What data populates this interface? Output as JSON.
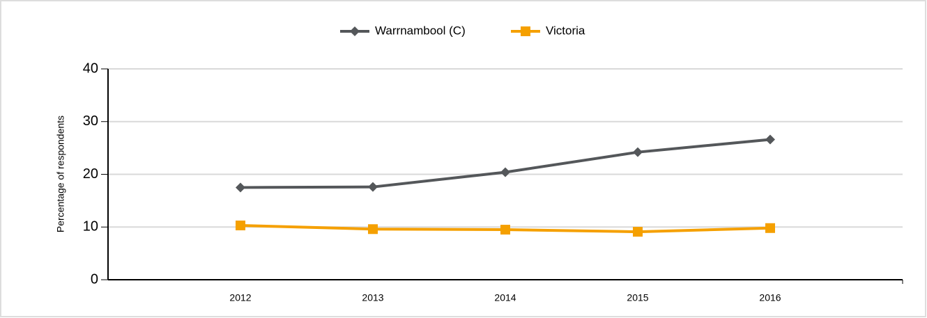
{
  "chart_data": {
    "type": "line",
    "y_label": "Percentage of respondents",
    "categories": [
      "2012",
      "2013",
      "2014",
      "2015",
      "2016"
    ],
    "series": [
      {
        "name": "Warrnambool (C)",
        "color": "#54575a",
        "marker": "diamond",
        "values": [
          17.5,
          17.6,
          20.4,
          24.2,
          26.6
        ]
      },
      {
        "name": "Victoria",
        "color": "#f5a000",
        "marker": "square",
        "values": [
          10.3,
          9.6,
          9.5,
          9.1,
          9.8
        ]
      }
    ],
    "ylim": [
      0,
      40
    ],
    "yticks": [
      0,
      10,
      20,
      30,
      40
    ],
    "grid": true,
    "legend": "top"
  }
}
